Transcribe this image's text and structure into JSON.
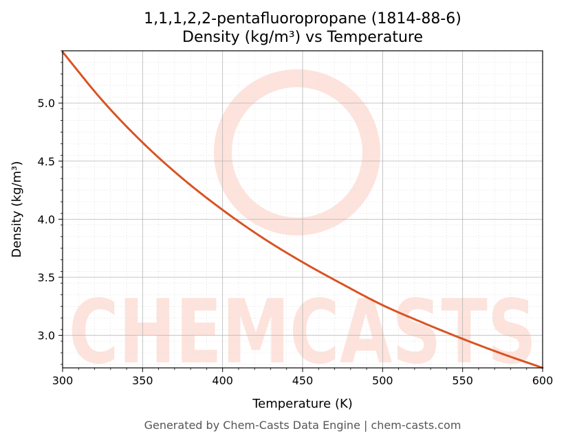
{
  "chart_data": {
    "type": "line",
    "title": "1,1,1,2,2-pentafluoropropane (1814-88-6)",
    "subtitle": "Density (kg/m³) vs Temperature",
    "xlabel": "Temperature (K)",
    "ylabel": "Density (kg/m³)",
    "xlim": [
      300,
      600
    ],
    "ylim": [
      2.72,
      5.45
    ],
    "x_ticks": [
      300,
      350,
      400,
      450,
      500,
      550,
      600
    ],
    "x_tick_labels": [
      "300",
      "350",
      "400",
      "450",
      "500",
      "550",
      "600"
    ],
    "y_ticks": [
      3.0,
      3.5,
      4.0,
      4.5,
      5.0
    ],
    "y_tick_labels": [
      "3.0",
      "3.5",
      "4.0",
      "4.5",
      "5.0"
    ],
    "grid": true,
    "series": [
      {
        "color": "#d95323",
        "x": [
          300,
          325,
          350,
          375,
          400,
          425,
          450,
          475,
          500,
          525,
          550,
          575,
          600
        ],
        "y": [
          5.44,
          5.02,
          4.66,
          4.35,
          4.08,
          3.84,
          3.63,
          3.44,
          3.26,
          3.11,
          2.97,
          2.84,
          2.72
        ]
      }
    ]
  },
  "watermark": {
    "text": "CHEMCASTS",
    "color": "#fde3dc"
  },
  "footer": "Generated by Chem-Casts Data Engine | chem-casts.com"
}
